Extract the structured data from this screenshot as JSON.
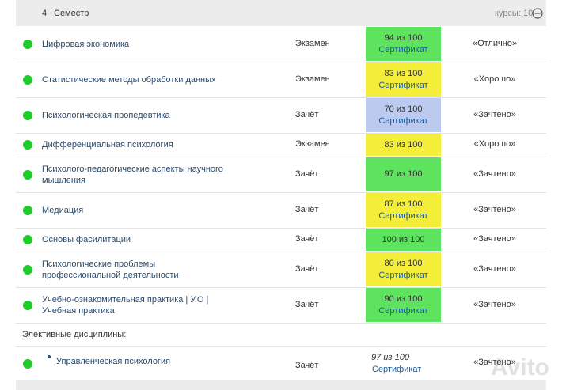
{
  "header": {
    "number": "4",
    "title": "Семестр",
    "courses": "курсы: 10"
  },
  "rows": [
    {
      "name": [
        "Цифровая экономика"
      ],
      "kind": "Экзамен",
      "score": "94 из 100",
      "certificate": "Сертификат",
      "grade": "«Отлично»",
      "color": "#5ee35e"
    },
    {
      "name": [
        "Статистические методы обработки данных"
      ],
      "kind": "Экзамен",
      "score": "83 из 100",
      "certificate": "Сертификат",
      "grade": "«Хорошо»",
      "color": "#f4ee3a"
    },
    {
      "name": [
        "Психологическая пропедевтика"
      ],
      "kind": "Зачёт",
      "score": "70 из 100",
      "certificate": "Сертификат",
      "grade": "«Зачтено»",
      "color": "#bccaf0"
    },
    {
      "name": [
        "Дифференциальная психология"
      ],
      "kind": "Экзамен",
      "score": "83 из 100",
      "grade": "«Хорошо»",
      "color": "#f4ee3a"
    },
    {
      "name": [
        "Психолого-педагогические аспекты научного",
        "мышления"
      ],
      "kind": "Зачёт",
      "score": "97 из 100",
      "grade": "«Зачтено»",
      "color": "#5ee35e"
    },
    {
      "name": [
        "Медиация"
      ],
      "kind": "Зачёт",
      "score": "87 из 100",
      "certificate": "Сертификат",
      "grade": "«Зачтено»",
      "color": "#f4ee3a"
    },
    {
      "name": [
        "Основы фасилитации"
      ],
      "kind": "Зачёт",
      "score": "100 из 100",
      "grade": "«Зачтено»",
      "color": "#5ee35e"
    },
    {
      "name": [
        "Психологические проблемы",
        "профессиональной деятельности"
      ],
      "kind": "Зачёт",
      "score": "80 из 100",
      "certificate": "Сертификат",
      "grade": "«Зачтено»",
      "color": "#f4ee3a"
    },
    {
      "name": [
        "Учебно-ознакомительная практика | У.О |",
        "Учебная практика"
      ],
      "kind": "Зачёт",
      "score": "90 из 100",
      "certificate": "Сертификат",
      "grade": "«Зачтено»",
      "color": "#5ee35e"
    }
  ],
  "electives": {
    "title": "Элективные дисциплины:",
    "rows": [
      {
        "name": "Управленческая психология",
        "kind": "Зачёт",
        "score": "97 из 100",
        "certificate": "Сертификат",
        "grade": "«Зачтено»"
      }
    ]
  },
  "watermark": "Avito"
}
